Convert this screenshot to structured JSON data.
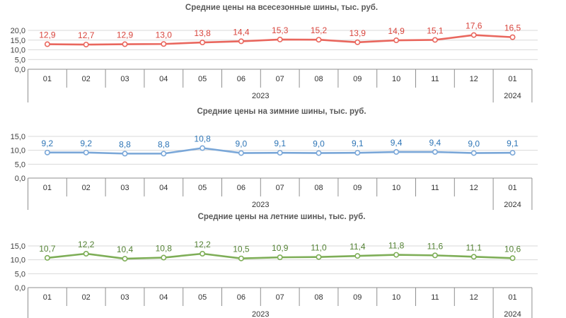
{
  "page": {
    "background": "#ffffff",
    "grid_color": "#d9d9d9",
    "axis_color": "#8f8f8f",
    "tick_text_color": "#404040",
    "title_color": "#595959"
  },
  "chart_data": [
    {
      "type": "line",
      "title": "Средние цены на всесезонные шины, тыс. руб.",
      "categories": [
        "01",
        "02",
        "03",
        "04",
        "05",
        "06",
        "07",
        "08",
        "09",
        "10",
        "11",
        "12",
        "01"
      ],
      "year_groups": [
        {
          "label": "2023",
          "start": 0,
          "span": 12
        },
        {
          "label": "2024",
          "start": 12,
          "span": 1
        }
      ],
      "values": [
        12.9,
        12.7,
        12.9,
        13.0,
        13.8,
        14.4,
        15.3,
        15.2,
        13.9,
        14.9,
        15.1,
        17.6,
        16.5
      ],
      "point_labels": [
        "12,9",
        "12,7",
        "12,9",
        "13,0",
        "13,8",
        "14,4",
        "15,3",
        "15,2",
        "13,9",
        "14,9",
        "15,1",
        "17,6",
        "16,5"
      ],
      "ylim": [
        0,
        20
      ],
      "ytick_step": 5,
      "ytick_labels": [
        "0,0",
        "5,0",
        "10,0",
        "15,0",
        "20,0"
      ],
      "grid": true,
      "legend": "none",
      "line_color": "#e9675e",
      "label_color": "#d8453d"
    },
    {
      "type": "line",
      "title": "Средние цены на зимние шины, тыс. руб.",
      "categories": [
        "01",
        "02",
        "03",
        "04",
        "05",
        "06",
        "07",
        "08",
        "09",
        "10",
        "11",
        "12",
        "01"
      ],
      "year_groups": [
        {
          "label": "2023",
          "start": 0,
          "span": 12
        },
        {
          "label": "2024",
          "start": 12,
          "span": 1
        }
      ],
      "values": [
        9.2,
        9.2,
        8.8,
        8.8,
        10.8,
        9.0,
        9.1,
        9.0,
        9.1,
        9.4,
        9.4,
        9.0,
        9.1
      ],
      "point_labels": [
        "9,2",
        "9,2",
        "8,8",
        "8,8",
        "10,8",
        "9,0",
        "9,1",
        "9,0",
        "9,1",
        "9,4",
        "9,4",
        "9,0",
        "9,1"
      ],
      "ylim": [
        0,
        15
      ],
      "ytick_step": 5,
      "ytick_labels": [
        "0,0",
        "5,0",
        "10,0",
        "15,0"
      ],
      "grid": true,
      "legend": "none",
      "line_color": "#7aa7d8",
      "label_color": "#2e75b6"
    },
    {
      "type": "line",
      "title": "Средние цены на летние шины, тыс. руб.",
      "categories": [
        "01",
        "02",
        "03",
        "04",
        "05",
        "06",
        "07",
        "08",
        "09",
        "10",
        "11",
        "12",
        "01"
      ],
      "year_groups": [
        {
          "label": "2023",
          "start": 0,
          "span": 12
        },
        {
          "label": "2024",
          "start": 12,
          "span": 1
        }
      ],
      "values": [
        10.7,
        12.2,
        10.4,
        10.8,
        12.2,
        10.5,
        10.9,
        11.0,
        11.4,
        11.8,
        11.6,
        11.1,
        10.6
      ],
      "point_labels": [
        "10,7",
        "12,2",
        "10,4",
        "10,8",
        "12,2",
        "10,5",
        "10,9",
        "11,0",
        "11,4",
        "11,8",
        "11,6",
        "11,1",
        "10,6"
      ],
      "ylim": [
        0,
        15
      ],
      "ytick_step": 5,
      "ytick_labels": [
        "0,0",
        "5,0",
        "10,0",
        "15,0"
      ],
      "grid": true,
      "legend": "none",
      "line_color": "#7eae57",
      "label_color": "#548235"
    }
  ]
}
